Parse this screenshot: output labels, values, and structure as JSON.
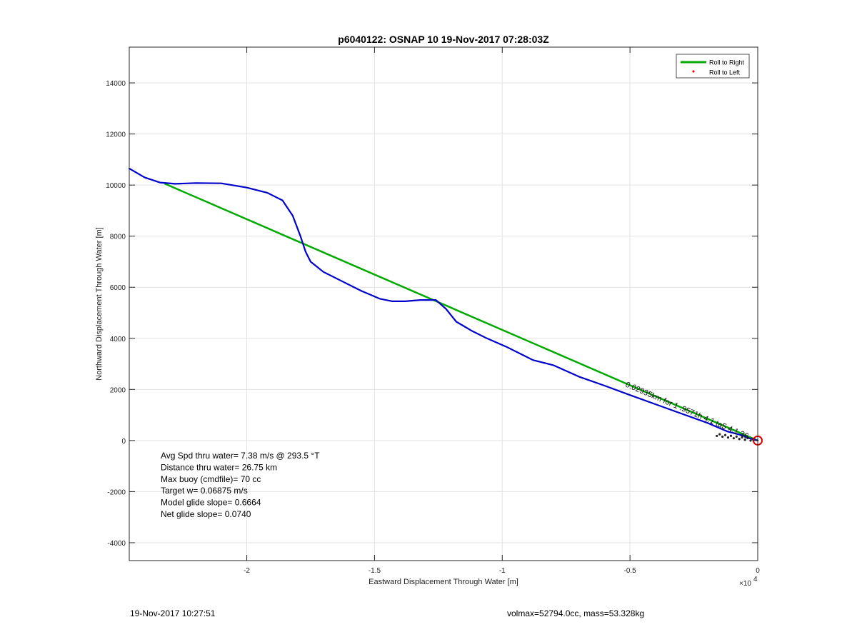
{
  "chart_data": {
    "type": "line",
    "title": "p6040122: OSNAP 10 19-Nov-2017 07:28:03Z",
    "xlabel": "Eastward Displacement Through Water [m]",
    "ylabel": "Northward Displacement Through Water [m]",
    "x_multiplier_label": "×10",
    "x_multiplier_exponent": "4",
    "xlim": [
      -24600,
      0
    ],
    "ylim": [
      -4700,
      15400
    ],
    "x_ticks": [
      -20000,
      -15000,
      -10000,
      -5000,
      0
    ],
    "x_tick_labels": [
      "-2",
      "-1.5",
      "-1",
      "-0.5",
      "0"
    ],
    "y_ticks": [
      -4000,
      -2000,
      0,
      2000,
      4000,
      6000,
      8000,
      10000,
      12000,
      14000
    ],
    "y_tick_labels": [
      "-4000",
      "-2000",
      "0",
      "2000",
      "4000",
      "6000",
      "8000",
      "10000",
      "12000",
      "14000"
    ],
    "grid": true,
    "legend_position": "top-right",
    "series": [
      {
        "name": "Roll to Right",
        "color": "#00aa00",
        "style": "line",
        "x": [
          -23200,
          0
        ],
        "y": [
          10050,
          0
        ]
      },
      {
        "name": "Roll to Left",
        "color": "#ff0000",
        "style": "marker",
        "x": [],
        "y": []
      },
      {
        "color": "#0000cc",
        "style": "line",
        "x": [
          -24600,
          -24000,
          -23400,
          -22800,
          -22000,
          -21000,
          -20000,
          -19200,
          -18600,
          -18200,
          -17900,
          -17700,
          -17500,
          -17000,
          -16300,
          -15500,
          -14800,
          -14300,
          -13800,
          -13200,
          -12600,
          -12200,
          -11800,
          -11200,
          -10600,
          -9800,
          -9200,
          -8800,
          -8000,
          -7000,
          -6000,
          -5000,
          -4000,
          -3000,
          -2000,
          -1200,
          -600,
          -300,
          0
        ],
        "y": [
          10650,
          10300,
          10100,
          10050,
          10080,
          10070,
          9900,
          9700,
          9400,
          8800,
          8000,
          7400,
          7000,
          6600,
          6250,
          5850,
          5550,
          5450,
          5450,
          5500,
          5500,
          5150,
          4650,
          4300,
          4000,
          3650,
          3350,
          3150,
          2950,
          2500,
          2150,
          1780,
          1420,
          1060,
          700,
          360,
          200,
          80,
          0
        ]
      }
    ],
    "annotations": {
      "stats_lines": [
        "Avg Spd thru water=  7.38 m/s @ 293.5 °T",
        "Distance thru water= 26.75 km",
        "Max buoy (cmdfile)= 70 cc",
        "Target w= 0.06875 m/s",
        "Model glide slope= 0.6664",
        "Net glide slope= 0.0740"
      ],
      "path_label": "0.02935km    for 1 .9571h    4.1 ta5 4.1 36"
    },
    "start_marker": {
      "x": 0,
      "y": 0,
      "color": "#dd0000"
    }
  },
  "footer": {
    "left": "19-Nov-2017 10:27:51",
    "right": "volmax=52794.0cc, mass=53.328kg"
  }
}
